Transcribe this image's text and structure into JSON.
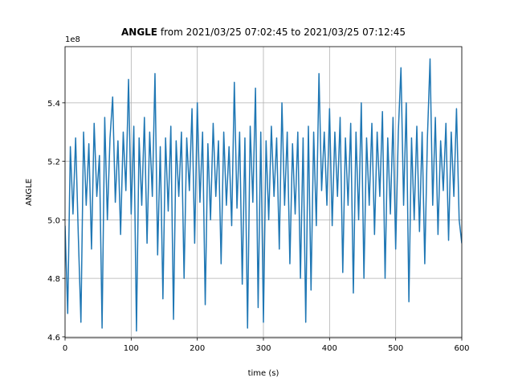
{
  "chart_data": {
    "type": "line",
    "title": {
      "bold": "ANGLE",
      "rest": "from 2021/03/25 07:02:45 to 2021/03/25 07:12:45"
    },
    "x_label": "time (s)",
    "y_label": "ANGLE",
    "y_offset_text": "1e8",
    "xlim": [
      0,
      600
    ],
    "xticks": [
      0,
      100,
      200,
      300,
      400,
      500,
      600
    ],
    "ylim": [
      4.597,
      5.592
    ],
    "yticks": [
      4.6,
      4.8,
      {
        "value": 5,
        "label": "5.0"
      },
      5.2,
      5.4
    ],
    "grid": true,
    "series": [
      {
        "name": "ANGLE",
        "color": "#1f77b4",
        "x": [
          0,
          4,
          8,
          12,
          16,
          20,
          24,
          28,
          32,
          36,
          40,
          44,
          48,
          52,
          56,
          60,
          64,
          68,
          72,
          76,
          80,
          84,
          88,
          92,
          96,
          100,
          104,
          108,
          112,
          116,
          120,
          124,
          128,
          132,
          136,
          140,
          144,
          148,
          152,
          156,
          160,
          164,
          168,
          172,
          176,
          180,
          184,
          188,
          192,
          196,
          200,
          204,
          208,
          212,
          216,
          220,
          224,
          228,
          232,
          236,
          240,
          244,
          248,
          252,
          256,
          260,
          264,
          268,
          272,
          276,
          280,
          284,
          288,
          292,
          296,
          300,
          304,
          308,
          312,
          316,
          320,
          324,
          328,
          332,
          336,
          340,
          344,
          348,
          352,
          356,
          360,
          364,
          368,
          372,
          376,
          380,
          384,
          388,
          392,
          396,
          400,
          404,
          408,
          412,
          416,
          420,
          424,
          428,
          432,
          436,
          440,
          444,
          448,
          452,
          456,
          460,
          464,
          468,
          472,
          476,
          480,
          484,
          488,
          492,
          496,
          500,
          504,
          508,
          512,
          516,
          520,
          524,
          528,
          532,
          536,
          540,
          544,
          548,
          552,
          556,
          560,
          564,
          568,
          572,
          576,
          580,
          584,
          588,
          592,
          596,
          600
        ],
        "values": [
          4.98,
          4.68,
          5.25,
          5.02,
          5.28,
          4.95,
          4.65,
          5.3,
          5.05,
          5.26,
          4.9,
          5.33,
          5.08,
          5.22,
          4.63,
          5.35,
          5.0,
          5.28,
          5.42,
          5.06,
          5.27,
          4.95,
          5.3,
          5.1,
          5.48,
          5.02,
          5.32,
          4.62,
          5.28,
          5.05,
          5.35,
          4.92,
          5.3,
          5.08,
          5.5,
          4.88,
          5.25,
          4.73,
          5.28,
          5.03,
          5.32,
          4.66,
          5.27,
          5.08,
          5.3,
          4.8,
          5.28,
          5.1,
          5.38,
          4.92,
          5.4,
          5.06,
          5.3,
          4.71,
          5.26,
          5.0,
          5.33,
          5.08,
          5.27,
          4.85,
          5.3,
          5.05,
          5.25,
          4.98,
          5.47,
          5.04,
          5.3,
          4.78,
          5.28,
          4.63,
          5.32,
          5.06,
          5.45,
          4.7,
          5.3,
          4.65,
          5.27,
          5.0,
          5.32,
          5.08,
          5.28,
          4.9,
          5.4,
          5.05,
          5.3,
          4.85,
          5.26,
          5.02,
          5.3,
          4.8,
          5.28,
          4.65,
          5.32,
          4.76,
          5.3,
          4.98,
          5.5,
          5.1,
          5.3,
          5.05,
          5.38,
          4.98,
          5.3,
          5.08,
          5.35,
          4.82,
          5.28,
          5.05,
          5.33,
          4.75,
          5.3,
          5.0,
          5.4,
          4.8,
          5.28,
          5.05,
          5.33,
          4.95,
          5.3,
          5.08,
          5.37,
          4.8,
          5.28,
          5.02,
          5.35,
          4.9,
          5.3,
          5.52,
          5.05,
          5.4,
          4.72,
          5.28,
          5.0,
          5.32,
          4.96,
          5.3,
          4.85,
          5.28,
          5.55,
          5.05,
          5.35,
          4.95,
          5.27,
          5.1,
          5.33,
          4.93,
          5.3,
          5.08,
          5.38,
          5.0,
          4.92
        ]
      }
    ]
  }
}
